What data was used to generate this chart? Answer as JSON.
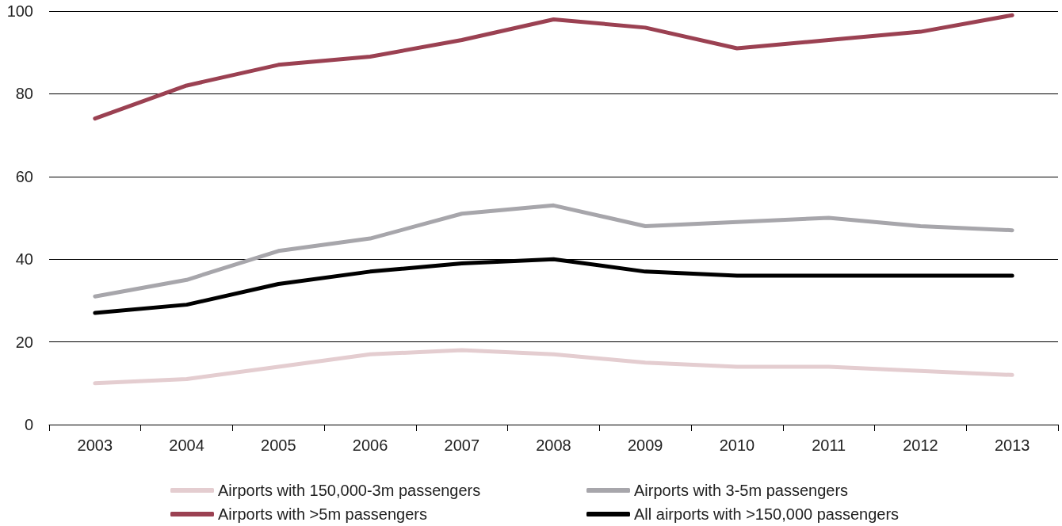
{
  "chart_data": {
    "type": "line",
    "categories": [
      "2003",
      "2004",
      "2005",
      "2006",
      "2007",
      "2008",
      "2009",
      "2010",
      "2011",
      "2012",
      "2013"
    ],
    "series": [
      {
        "name": "Airports with 150,000-3m passengers",
        "color": "#e4cdd0",
        "values": [
          10,
          11,
          14,
          17,
          18,
          17,
          15,
          14,
          14,
          13,
          12
        ]
      },
      {
        "name": "Airports with 3-5m passengers",
        "color": "#a7a6ab",
        "values": [
          31,
          35,
          42,
          45,
          51,
          53,
          48,
          49,
          50,
          48,
          47
        ]
      },
      {
        "name": "Airports with >5m passengers",
        "color": "#9b4152",
        "values": [
          74,
          82,
          87,
          89,
          93,
          98,
          96,
          91,
          93,
          95,
          99
        ]
      },
      {
        "name": "All airports with >150,000 passengers",
        "color": "#000000",
        "values": [
          27,
          29,
          34,
          37,
          39,
          40,
          37,
          36,
          36,
          36,
          36
        ]
      }
    ],
    "ylim": [
      0,
      100
    ],
    "yticks": [
      0,
      20,
      40,
      60,
      80,
      100
    ],
    "grid": "y",
    "legend": "bottom",
    "marker": "none",
    "line_style": "solid"
  }
}
